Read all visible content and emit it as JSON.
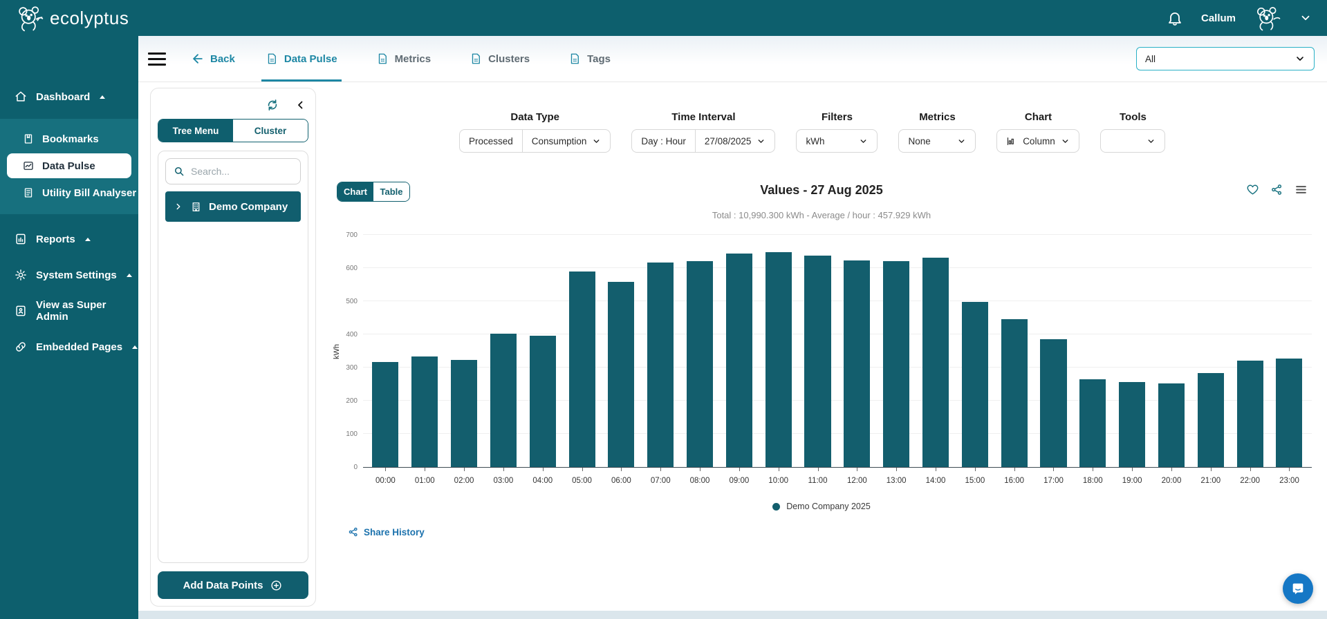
{
  "brand": {
    "name": "ecolyptus"
  },
  "header": {
    "user_name": "Callum"
  },
  "sidebar": {
    "items": [
      {
        "label": "Dashboard",
        "icon": "home",
        "expanded": true
      },
      {
        "label": "Bookmarks",
        "icon": "bookmark"
      },
      {
        "label": "Data Pulse",
        "icon": "pulse-chart",
        "active": true
      },
      {
        "label": "Utility Bill Analyser",
        "icon": "bill-document"
      },
      {
        "label": "Reports",
        "icon": "report",
        "expanded": true
      },
      {
        "label": "System Settings",
        "icon": "gear",
        "expanded": true
      },
      {
        "label": "View as Super Admin",
        "icon": "id-badge"
      },
      {
        "label": "Embedded Pages",
        "icon": "link",
        "expanded": true
      }
    ]
  },
  "topnav": {
    "back_label": "Back",
    "tabs": [
      {
        "label": "Data Pulse",
        "active": true
      },
      {
        "label": "Metrics"
      },
      {
        "label": "Clusters"
      },
      {
        "label": "Tags"
      }
    ],
    "scope_select": {
      "value": "All"
    }
  },
  "tree_panel": {
    "tabs": [
      {
        "label": "Tree Menu",
        "active": true
      },
      {
        "label": "Cluster"
      }
    ],
    "search_placeholder": "Search...",
    "root_item": "Demo Company",
    "add_button": "Add Data Points"
  },
  "controls": {
    "data_type": {
      "label": "Data Type",
      "mode": "Processed",
      "value": "Consumption"
    },
    "time_interval": {
      "label": "Time Interval",
      "mode": "Day : Hour",
      "value": "27/08/2025"
    },
    "filters": {
      "label": "Filters",
      "value": "kWh"
    },
    "metrics": {
      "label": "Metrics",
      "value": "None"
    },
    "chart": {
      "label": "Chart",
      "value": "Column"
    },
    "tools": {
      "label": "Tools",
      "value": ""
    }
  },
  "chart_card": {
    "view_toggle": [
      {
        "label": "Chart",
        "active": true
      },
      {
        "label": "Table"
      }
    ],
    "legend": "Demo Company 2025",
    "share_history": "Share History"
  },
  "chart_data": {
    "type": "bar",
    "title": "Values - 27 Aug 2025",
    "subtitle": "Total : 10,990.300 kWh - Average / hour : 457.929 kWh",
    "ylabel": "kWh",
    "ylim": [
      0,
      700
    ],
    "ytick_step": 100,
    "grid": true,
    "legend_position": "bottom",
    "bar_color": "#135e6d",
    "categories": [
      "00:00",
      "01:00",
      "02:00",
      "03:00",
      "04:00",
      "05:00",
      "06:00",
      "07:00",
      "08:00",
      "09:00",
      "10:00",
      "11:00",
      "12:00",
      "13:00",
      "14:00",
      "15:00",
      "16:00",
      "17:00",
      "18:00",
      "19:00",
      "20:00",
      "21:00",
      "22:00",
      "23:00"
    ],
    "values": [
      317,
      333,
      322,
      403,
      395,
      590,
      558,
      617,
      621,
      643,
      647,
      638,
      623,
      620,
      631,
      497,
      446,
      386,
      265,
      257,
      253,
      284,
      320,
      327
    ]
  },
  "colors": {
    "brand_teal": "#0d5f6d",
    "accent_teal": "#1d87a4",
    "select_border": "#29b0c6",
    "link_blue": "#1c72ad",
    "chat_blue": "#1577c5",
    "bar": "#135e6d"
  }
}
